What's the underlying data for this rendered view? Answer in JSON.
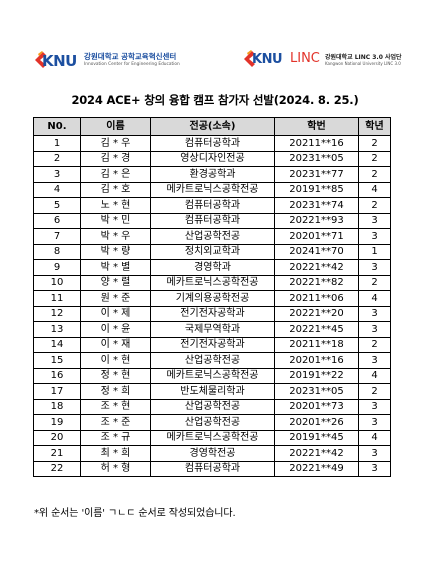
{
  "header": {
    "left_logo": {
      "mark": "KNU",
      "name": "강원대학교 공학교육혁신센터",
      "sub": "Innovation Center for Engineering Education"
    },
    "right_logo": {
      "mark": "KNU",
      "linc": "LINC",
      "name": "강원대학교 LINC 3.0 사업단",
      "sub": "Kangwon National University LINC 3.0"
    }
  },
  "title": "2024 ACE+ 창의 융합 캠프 참가자 선발(2024. 8. 25.)",
  "table": {
    "headers": [
      "N0.",
      "이름",
      "전공(소속)",
      "학번",
      "학년"
    ],
    "rows": [
      [
        "1",
        "김 * 우",
        "컴퓨터공학과",
        "20211**16",
        "2"
      ],
      [
        "2",
        "김 * 경",
        "영상디자인전공",
        "20231**05",
        "2"
      ],
      [
        "3",
        "김 * 은",
        "환경공학과",
        "20231**77",
        "2"
      ],
      [
        "4",
        "김 * 호",
        "메카트로닉스공학전공",
        "20191**85",
        "4"
      ],
      [
        "5",
        "노 * 현",
        "컴퓨터공학과",
        "20231**74",
        "2"
      ],
      [
        "6",
        "박 * 민",
        "컴퓨터공학과",
        "20221**93",
        "3"
      ],
      [
        "7",
        "박 * 우",
        "산업공학전공",
        "20201**71",
        "3"
      ],
      [
        "8",
        "박 * 량",
        "정치외교학과",
        "20241**70",
        "1"
      ],
      [
        "9",
        "박 * 별",
        "경영학과",
        "20221**42",
        "3"
      ],
      [
        "10",
        "양 * 렬",
        "메카트로닉스공학전공",
        "20221**82",
        "2"
      ],
      [
        "11",
        "원 * 준",
        "기계의용공학전공",
        "20211**06",
        "4"
      ],
      [
        "12",
        "이 * 제",
        "전기전자공학과",
        "20221**20",
        "3"
      ],
      [
        "13",
        "이 * 윤",
        "국제무역학과",
        "20221**45",
        "3"
      ],
      [
        "14",
        "이 * 재",
        "전기전자공학과",
        "20211**18",
        "2"
      ],
      [
        "15",
        "이 * 현",
        "산업공학전공",
        "20201**16",
        "3"
      ],
      [
        "16",
        "정 * 현",
        "메카트로닉스공학전공",
        "20191**22",
        "4"
      ],
      [
        "17",
        "정 * 희",
        "반도체물리학과",
        "20231**05",
        "2"
      ],
      [
        "18",
        "조 * 현",
        "산업공학전공",
        "20201**73",
        "3"
      ],
      [
        "19",
        "조 * 준",
        "산업공학전공",
        "20201**26",
        "3"
      ],
      [
        "20",
        "조 * 규",
        "메카트로닉스공학전공",
        "20191**45",
        "4"
      ],
      [
        "21",
        "최 * 희",
        "경영학전공",
        "20221**42",
        "3"
      ],
      [
        "22",
        "허 * 형",
        "컴퓨터공학과",
        "20221**49",
        "3"
      ]
    ]
  },
  "note": "*위 순서는 '이름' ㄱㄴㄷ 순서로 작성되었습니다.",
  "colors": {
    "brand_blue": "#1c4fa0",
    "linc_red": "#e2332a",
    "header_gray": "#d9d9d9"
  }
}
